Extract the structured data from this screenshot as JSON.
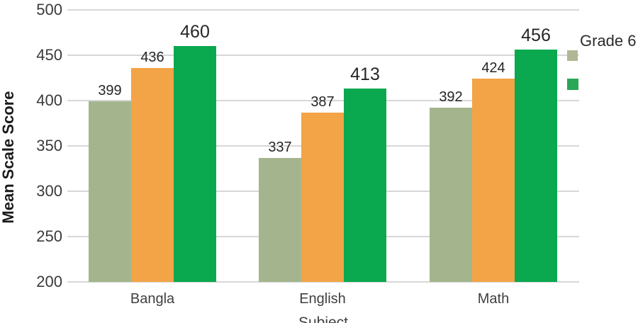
{
  "chart_data": {
    "type": "bar",
    "title": "",
    "xlabel": "Subject",
    "ylabel": "Mean Scale Score",
    "categories": [
      "Bangla",
      "English",
      "Math"
    ],
    "series": [
      {
        "name": "Grade 6",
        "color": "#a4b58e",
        "values": [
          399,
          337,
          392
        ]
      },
      {
        "name": "",
        "color": "#f2a447",
        "values": [
          436,
          387,
          424
        ]
      },
      {
        "name": "",
        "color": "#0aa84f",
        "values": [
          460,
          413,
          456
        ]
      }
    ],
    "ylim": [
      200,
      500
    ],
    "yticks": [
      200,
      250,
      300,
      350,
      400,
      450,
      500
    ],
    "grid": true,
    "legend_position": "right",
    "legend_visible_entries": [
      {
        "label": "Grade 6",
        "color": "#b1b795"
      },
      {
        "label": "",
        "color": "#2aa656"
      }
    ]
  },
  "colors": {
    "gridline": "#d7d7d7",
    "tick_text": "#3a3a3a",
    "value_text": "#262626"
  }
}
